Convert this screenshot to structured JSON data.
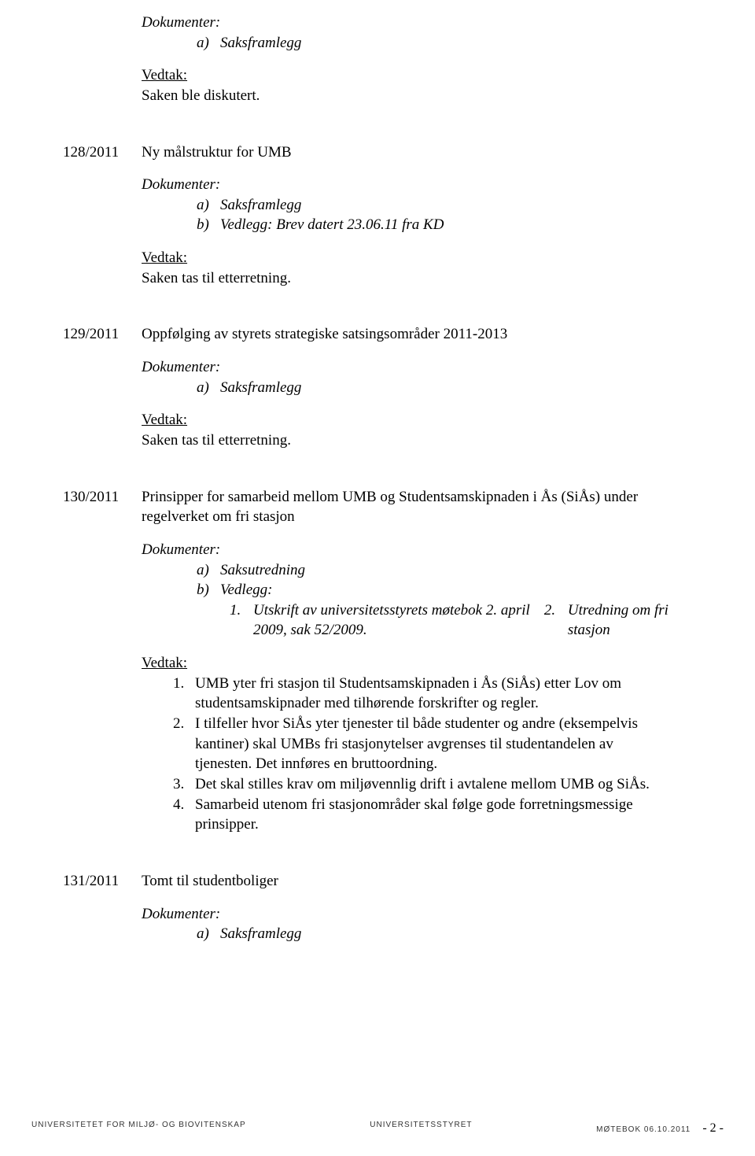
{
  "labels": {
    "dokumenter": "Dokumenter:",
    "vedtak": "Vedtak:",
    "saksframlegg": "Saksframlegg",
    "saksutredning": "Saksutredning",
    "vedlegg": "Vedlegg:",
    "a": "a)",
    "b": "b)"
  },
  "top": {
    "vedtak_text": "Saken ble diskutert."
  },
  "item128": {
    "num": "128/2011",
    "title": "Ny målstruktur for UMB",
    "doc_b": "Vedlegg: Brev datert 23.06.11 fra KD",
    "vedtak_text": "Saken tas til etterretning."
  },
  "item129": {
    "num": "129/2011",
    "title": "Oppfølging av styrets strategiske satsingsområder 2011-2013",
    "vedtak_text": "Saken tas til etterretning."
  },
  "item130": {
    "num": "130/2011",
    "title": "Prinsipper for samarbeid mellom UMB og Studentsamskipnaden i Ås (SiÅs) under regelverket om fri stasjon",
    "sub1": "Utskrift av universitetsstyrets møtebok 2. april 2009, sak 52/2009.",
    "sub2": "Utredning om fri stasjon",
    "sub1n": "1.",
    "sub2n": "2.",
    "v1n": "1.",
    "v2n": "2.",
    "v3n": "3.",
    "v4n": "4.",
    "v1": "UMB yter fri stasjon til Studentsamskipnaden i Ås (SiÅs) etter Lov om studentsamskipnader med tilhørende forskrifter og regler.",
    "v2": "I tilfeller hvor SiÅs yter tjenester til både studenter og andre (eksempelvis kantiner) skal UMBs fri stasjonytelser avgrenses til studentandelen av tjenesten. Det innføres en bruttoordning.",
    "v3": "Det skal stilles krav om miljøvennlig drift i avtalene mellom UMB og SiÅs.",
    "v4": "Samarbeid utenom fri stasjonområder skal følge gode forretningsmessige prinsipper."
  },
  "item131": {
    "num": "131/2011",
    "title": "Tomt til studentboliger"
  },
  "footer": {
    "left": "UNIVERSITETET FOR MILJØ- OG BIOVITENSKAP",
    "center": "UNIVERSITETSSTYRET",
    "right_label": "MØTEBOK 06.10.2011",
    "page": "- 2 -"
  }
}
